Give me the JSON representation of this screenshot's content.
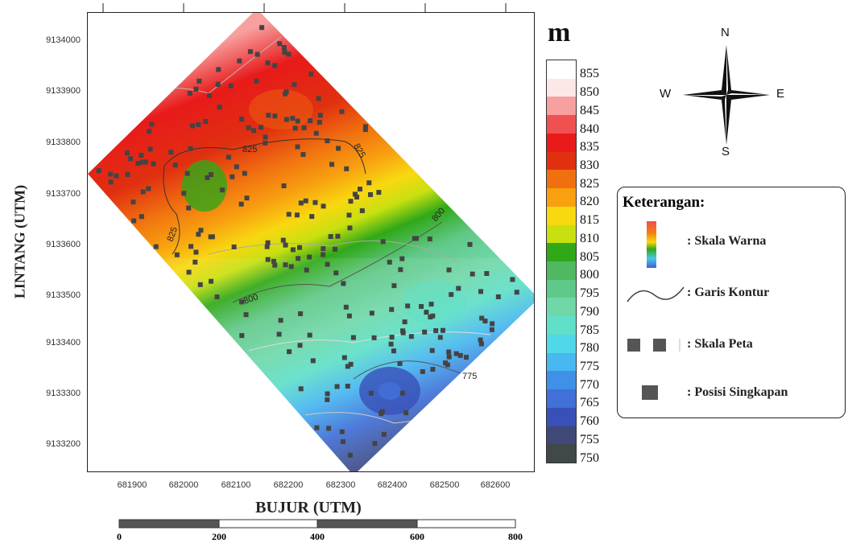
{
  "map": {
    "y_axis_label": "LINTANG (UTM)",
    "x_axis_label": "BUJUR (UTM)",
    "y_ticks": [
      "9134000",
      "9133900",
      "9133800",
      "9133700",
      "9133600",
      "9133500",
      "9133400",
      "9133300",
      "9133200"
    ],
    "x_ticks": [
      "681900",
      "682000",
      "682100",
      "682200",
      "682300",
      "682400",
      "682500",
      "682600"
    ],
    "contour_labels": [
      "825",
      "825",
      "825",
      "800",
      "800",
      "775"
    ]
  },
  "colorbar": {
    "unit": "m",
    "levels": [
      "855",
      "850",
      "845",
      "840",
      "835",
      "830",
      "825",
      "820",
      "815",
      "810",
      "805",
      "800",
      "795",
      "790",
      "785",
      "780",
      "775",
      "770",
      "765",
      "760",
      "755",
      "750"
    ],
    "colors": [
      "#ffffff",
      "#fde8e8",
      "#f8a0a0",
      "#f05050",
      "#e81a1a",
      "#e03010",
      "#f07010",
      "#f8a010",
      "#f8d810",
      "#c8e010",
      "#30a818",
      "#50b860",
      "#60c888",
      "#70d8a8",
      "#60e0c8",
      "#50d8e8",
      "#48b8f0",
      "#4090e8",
      "#4070d8",
      "#3850b8",
      "#404878",
      "#404848"
    ]
  },
  "compass": {
    "n": "N",
    "s": "S",
    "e": "E",
    "w": "W"
  },
  "legend": {
    "title": "Keterangan:",
    "items": [
      ": Skala Warna",
      ": Garis Kontur",
      ": Skala Peta",
      ": Posisi Singkapan"
    ]
  },
  "scalebar": {
    "labels": [
      "0",
      "200",
      "400",
      "600",
      "800"
    ]
  }
}
